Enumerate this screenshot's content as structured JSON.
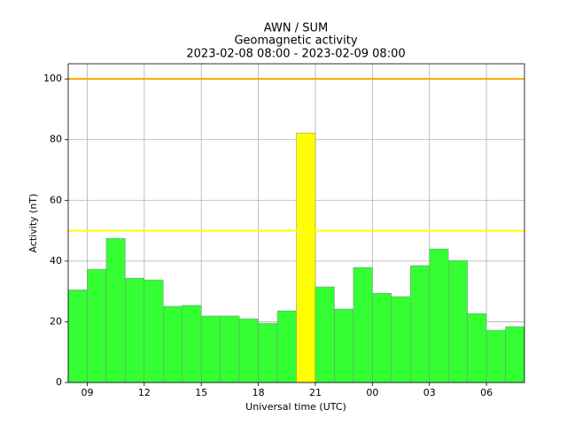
{
  "chart_data": {
    "type": "bar",
    "title": [
      "AWN / SUM",
      "Geomagnetic activity",
      "2023-02-08 08:00 - 2023-02-09 08:00"
    ],
    "x_label": "Universal time (UTC)",
    "y_label": "Activity (nT)",
    "x": [
      8,
      9,
      10,
      11,
      12,
      13,
      14,
      15,
      16,
      17,
      18,
      19,
      20,
      21,
      22,
      23,
      24,
      25,
      26,
      27,
      28,
      29,
      30,
      31
    ],
    "bar_width": 1,
    "values": [
      30.5,
      37.3,
      47.5,
      34.4,
      33.8,
      25.1,
      25.4,
      21.9,
      21.9,
      21,
      19.5,
      23.6,
      82.2,
      31.5,
      24.2,
      37.9,
      29.4,
      28.3,
      38.5,
      44,
      40.2,
      22.7,
      17.2,
      18.4
    ],
    "colors": [
      "#33ff33",
      "#33ff33",
      "#33ff33",
      "#33ff33",
      "#33ff33",
      "#33ff33",
      "#33ff33",
      "#33ff33",
      "#33ff33",
      "#33ff33",
      "#33ff33",
      "#33ff33",
      "#ffff00",
      "#33ff33",
      "#33ff33",
      "#33ff33",
      "#33ff33",
      "#33ff33",
      "#33ff33",
      "#33ff33",
      "#33ff33",
      "#33ff33",
      "#33ff33",
      "#33ff33"
    ],
    "hlines": [
      {
        "value": 100,
        "color": "#ffa500"
      },
      {
        "value": 50,
        "color": "#ffff00"
      }
    ],
    "xlim": [
      8,
      32
    ],
    "xticks": [
      {
        "value": 9,
        "label": "09"
      },
      12,
      15,
      18,
      21,
      {
        "value": 24,
        "label": "00"
      },
      {
        "value": 27,
        "label": "03"
      },
      {
        "value": 30,
        "label": "06"
      }
    ],
    "ylim": [
      0,
      105
    ],
    "yticks": [
      0,
      20,
      40,
      60,
      80,
      100
    ],
    "grid": true
  }
}
